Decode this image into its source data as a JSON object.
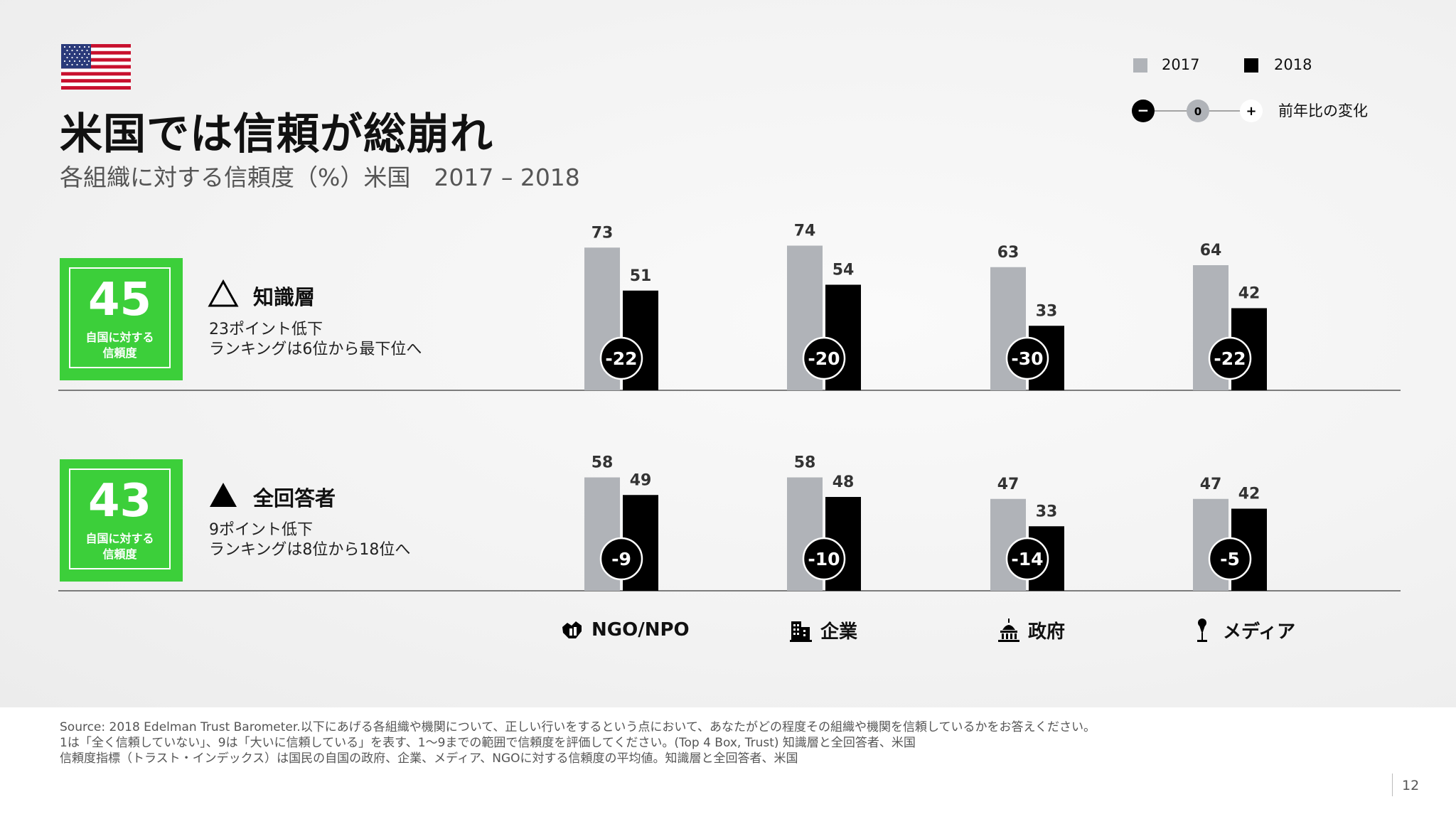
{
  "title": "米国では信頼が総崩れ",
  "subtitle": "各組織に対する信頼度（%）米国　2017 – 2018",
  "legend": {
    "items": [
      {
        "label": "2017",
        "color": "#b0b3b8"
      },
      {
        "label": "2018",
        "color": "#000000"
      }
    ],
    "change_scale": {
      "minus": "−",
      "zero": "0",
      "plus": "+",
      "label": "前年比の変化"
    }
  },
  "groups": [
    {
      "score": "45",
      "score_caption": [
        "自国に対する",
        "信頼度"
      ],
      "title": "知識層",
      "desc": [
        "23ポイント低下",
        "ランキングは6位から最下位へ"
      ],
      "icon": "outline-triangle-icon"
    },
    {
      "score": "43",
      "score_caption": [
        "自国に対する",
        "信頼度"
      ],
      "title": "全回答者",
      "desc": [
        "9ポイント低下",
        "ランキングは8位から18位へ"
      ],
      "icon": "filled-triangle-icon"
    }
  ],
  "categories": [
    {
      "label": "NGO/NPO",
      "icon": "hands-icon"
    },
    {
      "label": "企業",
      "icon": "building-icon"
    },
    {
      "label": "政府",
      "icon": "capitol-icon"
    },
    {
      "label": "メディア",
      "icon": "microphone-icon"
    }
  ],
  "chart_data": [
    {
      "type": "bar",
      "group": "知識層",
      "categories": [
        "NGO/NPO",
        "企業",
        "政府",
        "メディア"
      ],
      "series": [
        {
          "name": "2017",
          "values": [
            73,
            74,
            63,
            64
          ]
        },
        {
          "name": "2018",
          "values": [
            51,
            54,
            33,
            42
          ]
        }
      ],
      "change": [
        "-22",
        "-20",
        "-30",
        "-22"
      ],
      "ylim": [
        0,
        100
      ]
    },
    {
      "type": "bar",
      "group": "全回答者",
      "categories": [
        "NGO/NPO",
        "企業",
        "政府",
        "メディア"
      ],
      "series": [
        {
          "name": "2017",
          "values": [
            58,
            58,
            47,
            47
          ]
        },
        {
          "name": "2018",
          "values": [
            49,
            48,
            33,
            42
          ]
        }
      ],
      "change": [
        "-9",
        "-10",
        "-14",
        "-5"
      ],
      "ylim": [
        0,
        100
      ]
    }
  ],
  "source": [
    "Source: 2018 Edelman Trust Barometer.以下にあげる各組織や機関について、正しい行いをするという点において、あなたがどの程度その組織や機関を信頼しているかをお答えください。",
    "1は「全く信頼していない」、9は「大いに信頼している」を表す、1〜9までの範囲で信頼度を評価してください。(Top 4 Box, Trust) 知識層と全回答者、米国",
    "信頼度指標（トラスト・インデックス）は国民の自国の政府、企業、メディア、NGOに対する信頼度の平均値。知識層と全回答者、米国"
  ],
  "page_number": "12"
}
